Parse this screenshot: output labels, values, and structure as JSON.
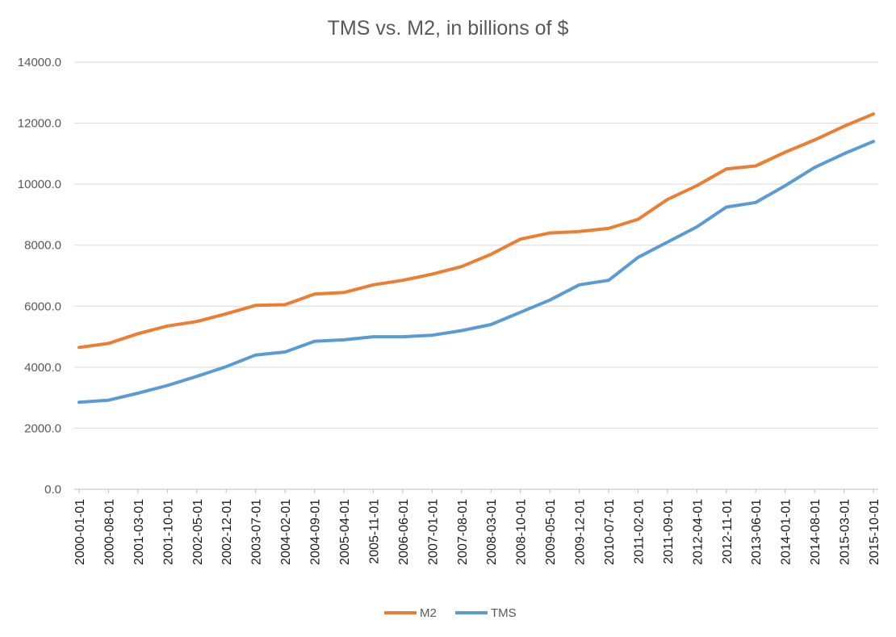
{
  "chart_data": {
    "type": "line",
    "title": "TMS vs. M2, in billions of $",
    "xlabel": "",
    "ylabel": "",
    "ylim": [
      0,
      14000
    ],
    "y_ticks": [
      "0.0",
      "2000.0",
      "4000.0",
      "6000.0",
      "8000.0",
      "10000.0",
      "12000.0",
      "14000.0"
    ],
    "x_tick_labels": [
      "2000-01-01",
      "2000-08-01",
      "2001-03-01",
      "2001-10-01",
      "2002-05-01",
      "2002-12-01",
      "2003-07-01",
      "2004-02-01",
      "2004-09-01",
      "2005-04-01",
      "2005-11-01",
      "2006-06-01",
      "2007-01-01",
      "2007-08-01",
      "2008-03-01",
      "2008-10-01",
      "2009-05-01",
      "2009-12-01",
      "2010-07-01",
      "2011-02-01",
      "2011-09-01",
      "2012-04-01",
      "2012-11-01",
      "2013-06-01",
      "2014-01-01",
      "2014-08-01",
      "2015-03-01",
      "2015-10-01"
    ],
    "grid": true,
    "legend_position": "bottom",
    "x": [
      "2000-01-01",
      "2000-08-01",
      "2001-03-01",
      "2001-10-01",
      "2002-05-01",
      "2002-12-01",
      "2003-07-01",
      "2004-02-01",
      "2004-09-01",
      "2005-04-01",
      "2005-11-01",
      "2006-06-01",
      "2007-01-01",
      "2007-08-01",
      "2008-03-01",
      "2008-10-01",
      "2009-05-01",
      "2009-12-01",
      "2010-07-01",
      "2011-02-01",
      "2011-09-01",
      "2012-04-01",
      "2012-11-01",
      "2013-06-01",
      "2014-01-01",
      "2014-08-01",
      "2015-03-01",
      "2015-10-01"
    ],
    "series": [
      {
        "name": "M2",
        "color": "#ed7d31",
        "values": [
          4650,
          4780,
          5100,
          5350,
          5500,
          5750,
          6030,
          6050,
          6400,
          6450,
          6700,
          6850,
          7050,
          7300,
          7700,
          8200,
          8400,
          8450,
          8550,
          8850,
          9500,
          9950,
          10500,
          10600,
          11050,
          11450,
          11900,
          12300
        ]
      },
      {
        "name": "TMS",
        "color": "#5b9bd5",
        "values": [
          2850,
          2920,
          3150,
          3400,
          3700,
          4020,
          4400,
          4500,
          4850,
          4900,
          5000,
          5000,
          5050,
          5200,
          5400,
          5800,
          6200,
          6700,
          6850,
          7600,
          8100,
          8600,
          9250,
          9400,
          9950,
          10550,
          11000,
          11400
        ]
      }
    ]
  }
}
